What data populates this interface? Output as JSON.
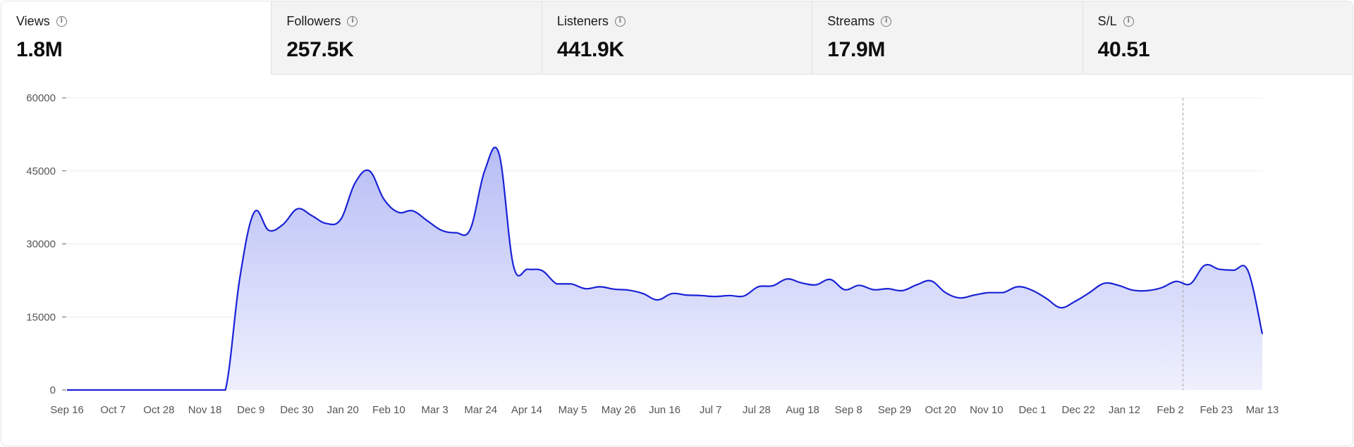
{
  "tabs": [
    {
      "label": "Views",
      "value": "1.8M",
      "active": true
    },
    {
      "label": "Followers",
      "value": "257.5K",
      "active": false
    },
    {
      "label": "Listeners",
      "value": "441.9K",
      "active": false
    },
    {
      "label": "Streams",
      "value": "17.9M",
      "active": false
    },
    {
      "label": "S/L",
      "value": "40.51",
      "active": false
    }
  ],
  "icons": {
    "info": "info-circle-icon"
  },
  "colors": {
    "line": "#1a22d6",
    "fill_top": "#b7bdf5",
    "fill_bottom": "#eef0fd",
    "grid": "#ededed",
    "hover_line": "#b0b0b0"
  },
  "chart_data": {
    "type": "area",
    "title": "",
    "xlabel": "",
    "ylabel": "",
    "ylim": [
      0,
      60000
    ],
    "yticks": [
      "60000",
      "45000",
      "30000",
      "15000",
      "0"
    ],
    "x_tick_labels": [
      "Sep 16",
      "Oct 7",
      "Oct 28",
      "Nov 18",
      "Dec 9",
      "Dec 30",
      "Jan 20",
      "Feb 10",
      "Mar 3",
      "Mar 24",
      "Apr 14",
      "May 5",
      "May 26",
      "Jun 16",
      "Jul 7",
      "Jul 28",
      "Aug 18",
      "Sep 8",
      "Sep 29",
      "Oct 20",
      "Nov 10",
      "Dec 1",
      "Dec 22",
      "Jan 12",
      "Feb 2",
      "Feb 23",
      "Mar 13"
    ],
    "grid": true,
    "hover_index": 77,
    "series": [
      {
        "values": [
          0,
          0,
          0,
          0,
          0,
          0,
          0,
          0,
          0,
          0,
          0,
          0,
          23000,
          36500,
          32800,
          34000,
          37200,
          35800,
          34200,
          35000,
          42500,
          45000,
          39200,
          36500,
          36800,
          34800,
          32800,
          32300,
          33000,
          45000,
          48500,
          25500,
          24800,
          24500,
          21800,
          21800,
          20800,
          21200,
          20700,
          20500,
          19800,
          18500,
          19800,
          19500,
          19400,
          19200,
          19400,
          19300,
          21200,
          21400,
          22800,
          22000,
          21600,
          22700,
          20600,
          21500,
          20600,
          20800,
          20400,
          21600,
          22400,
          20000,
          18900,
          19500,
          20000,
          20000,
          21200,
          20500,
          18800,
          16900,
          18200,
          20000,
          21900,
          21500,
          20500,
          20400,
          21000,
          22300,
          21800,
          25600,
          24800,
          24600,
          24500,
          11500
        ]
      }
    ]
  }
}
